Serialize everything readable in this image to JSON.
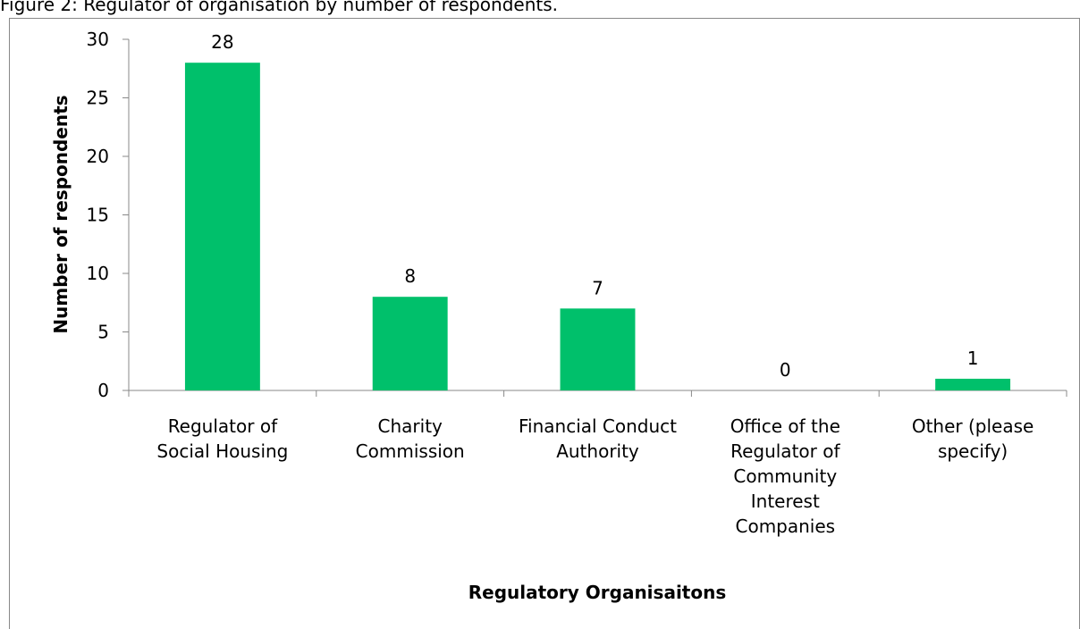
{
  "chart_data": {
    "type": "bar",
    "title": "Figure 2: Regulator of organisation by number of respondents.",
    "xlabel": "Regulatory Organisaitons",
    "ylabel": "Number of respondents",
    "categories": [
      "Regulator of Social Housing",
      "Charity Commission",
      "Financial Conduct Authority",
      "Office of the Regulator of Community Interest Companies",
      "Other (please specify)"
    ],
    "values": [
      28,
      8,
      7,
      0,
      1
    ],
    "color": "#00c06b",
    "ylim": [
      0,
      30
    ],
    "yticks": [
      0,
      5,
      10,
      15,
      20,
      25,
      30
    ]
  }
}
